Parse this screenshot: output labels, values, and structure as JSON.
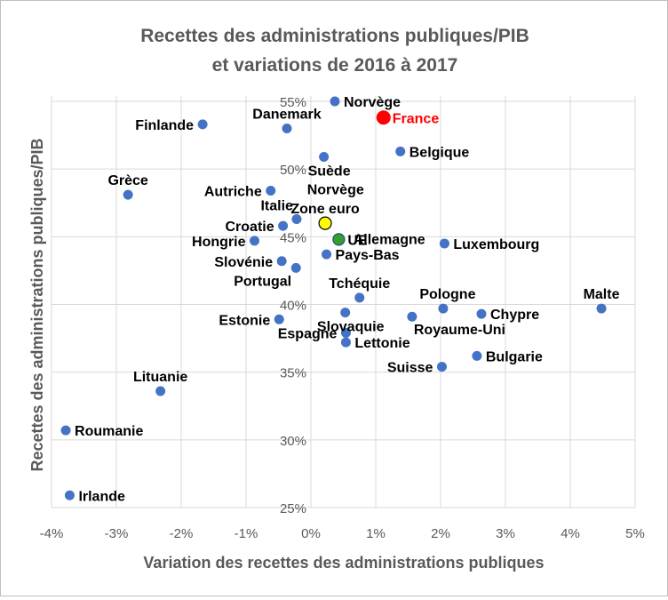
{
  "chart_data": {
    "type": "scatter",
    "title": [
      "Recettes des administrations publiques/PIB",
      "et variations de 2016 à 2017"
    ],
    "xlabel": "Variation des recettes des administrations publiques",
    "ylabel": "Recettes des administrations publiques/PIB",
    "xlim": [
      -4,
      5
    ],
    "ylim": [
      25,
      55
    ],
    "xticks": [
      -4,
      -3,
      -2,
      -1,
      0,
      1,
      2,
      3,
      4,
      5
    ],
    "yticks": [
      25,
      30,
      35,
      40,
      45,
      50,
      55
    ],
    "xtick_labels": [
      "-4%",
      "-3%",
      "-2%",
      "-1%",
      "0%",
      "1%",
      "2%",
      "3%",
      "4%",
      "5%"
    ],
    "ytick_labels": [
      "25%",
      "30%",
      "35%",
      "40%",
      "45%",
      "50%",
      "55%"
    ],
    "grid": true,
    "colors": {
      "default": "#4472c4",
      "highlight": "#ff0000",
      "aggregate": "#ffff00",
      "ue": "#33a02c"
    },
    "points": [
      {
        "name": "Norvège",
        "x": 0.37,
        "y": 55.0,
        "color": "#4472c4",
        "label_pos": "right"
      },
      {
        "name": "France",
        "x": 1.12,
        "y": 53.8,
        "color": "#ff0000",
        "label_pos": "right",
        "label_color": "#ff0000"
      },
      {
        "name": "Finlande",
        "x": -1.67,
        "y": 53.3,
        "color": "#4472c4",
        "label_pos": "left"
      },
      {
        "name": "Danemark",
        "x": -0.37,
        "y": 53.0,
        "color": "#4472c4",
        "label_pos": "above"
      },
      {
        "name": "Belgique",
        "x": 1.38,
        "y": 51.3,
        "color": "#4472c4",
        "label_pos": "right"
      },
      {
        "name": "Suède",
        "x": 0.2,
        "y": 50.9,
        "color": "#4472c4",
        "label_pos": "below"
      },
      {
        "name": "Grèce",
        "x": -2.82,
        "y": 48.1,
        "color": "#4472c4",
        "label_pos": "above"
      },
      {
        "name": "Autriche",
        "x": -0.62,
        "y": 48.4,
        "color": "#4472c4",
        "label_pos": "left"
      },
      {
        "name": "Norvège",
        "x": 0.38,
        "y": 46.3,
        "color": "#ffffff",
        "hidden": true,
        "label_pos": "upper-right"
      },
      {
        "name": "Italie",
        "x": -0.22,
        "y": 46.3,
        "color": "#4472c4",
        "label_pos": "upper-left"
      },
      {
        "name": "Zone euro",
        "x": 0.22,
        "y": 46.0,
        "color": "#ffff00",
        "label_pos": "above"
      },
      {
        "name": "Croatie",
        "x": -0.43,
        "y": 45.8,
        "color": "#4472c4",
        "label_pos": "left"
      },
      {
        "name": "Allemagne",
        "x": 0.38,
        "y": 45.2,
        "color": "#ffffff",
        "hidden": true,
        "label_pos": "upper-right-low"
      },
      {
        "name": "UE",
        "x": 0.43,
        "y": 44.8,
        "color": "#33a02c",
        "label_pos": "right"
      },
      {
        "name": "Hongrie",
        "x": -0.87,
        "y": 44.7,
        "color": "#4472c4",
        "label_pos": "left"
      },
      {
        "name": "Luxembourg",
        "x": 2.06,
        "y": 44.5,
        "color": "#4472c4",
        "label_pos": "right"
      },
      {
        "name": "Pays-Bas",
        "x": 0.24,
        "y": 43.7,
        "color": "#4472c4",
        "label_pos": "right"
      },
      {
        "name": "Slovénie",
        "x": -0.45,
        "y": 43.2,
        "color": "#4472c4",
        "label_pos": "left"
      },
      {
        "name": "Portugal",
        "x": -0.23,
        "y": 42.7,
        "color": "#4472c4",
        "label_pos": "below-left"
      },
      {
        "name": "Tchéquie",
        "x": 0.75,
        "y": 40.5,
        "color": "#4472c4",
        "label_pos": "above"
      },
      {
        "name": "Pologne",
        "x": 2.04,
        "y": 39.7,
        "color": "#4472c4",
        "label_pos": "above-right"
      },
      {
        "name": "Malte",
        "x": 4.48,
        "y": 39.7,
        "color": "#4472c4",
        "label_pos": "above"
      },
      {
        "name": "Chypre",
        "x": 2.63,
        "y": 39.3,
        "color": "#4472c4",
        "label_pos": "right"
      },
      {
        "name": "Slovaquie",
        "x": 0.53,
        "y": 39.4,
        "color": "#4472c4",
        "label_pos": "below"
      },
      {
        "name": "Royaume-Uni",
        "x": 1.56,
        "y": 39.1,
        "color": "#4472c4",
        "label_pos": "below-right"
      },
      {
        "name": "Estonie",
        "x": -0.49,
        "y": 38.9,
        "color": "#4472c4",
        "label_pos": "left"
      },
      {
        "name": "Espagne",
        "x": 0.54,
        "y": 37.9,
        "color": "#4472c4",
        "label_pos": "left"
      },
      {
        "name": "Lettonie",
        "x": 0.54,
        "y": 37.2,
        "color": "#4472c4",
        "label_pos": "right"
      },
      {
        "name": "Bulgarie",
        "x": 2.56,
        "y": 36.2,
        "color": "#4472c4",
        "label_pos": "right"
      },
      {
        "name": "Suisse",
        "x": 2.02,
        "y": 35.4,
        "color": "#4472c4",
        "label_pos": "left"
      },
      {
        "name": "Lituanie",
        "x": -2.32,
        "y": 33.6,
        "color": "#4472c4",
        "label_pos": "above"
      },
      {
        "name": "Roumanie",
        "x": -3.78,
        "y": 30.7,
        "color": "#4472c4",
        "label_pos": "right"
      },
      {
        "name": "Irlande",
        "x": -3.72,
        "y": 25.9,
        "color": "#4472c4",
        "label_pos": "right"
      }
    ]
  }
}
